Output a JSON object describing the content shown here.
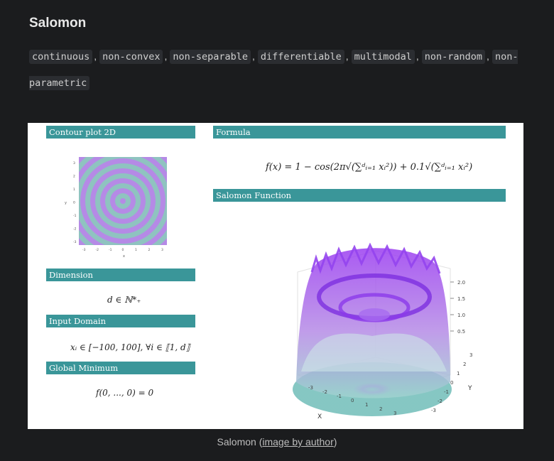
{
  "page": {
    "title": "Salomon",
    "tags": [
      "continuous",
      "non-convex",
      "non-separable",
      "differentiable",
      "multimodal",
      "non-random",
      "non-parametric"
    ],
    "tag_separator": ","
  },
  "figure": {
    "sections": {
      "contour": "Contour plot 2D",
      "formula": "Formula",
      "function": "Salomon Function",
      "dimension": "Dimension",
      "input_domain": "Input Domain",
      "global_minimum": "Global Minimum"
    },
    "formula_text": "f(x) = 1 − cos(2π√(∑ᵈᵢ₌₁ xᵢ²)) + 0.1√(∑ᵈᵢ₌₁ xᵢ²)",
    "dimension_text": "d ∈ ℕ*₊",
    "input_domain_text": "xᵢ ∈ [−100, 100], ∀i ∈ ⟦1, d⟧",
    "global_minimum_text": "f(0, ..., 0) = 0",
    "contour_axis": {
      "ticks": [
        "-3",
        "-2",
        "-1",
        "0",
        "1",
        "2",
        "3"
      ],
      "xlabel": "x",
      "ylabel": "y"
    },
    "surface_axis": {
      "x_ticks": [
        "-3",
        "-2",
        "-1",
        "0",
        "1",
        "2",
        "3"
      ],
      "y_ticks": [
        "-3",
        "-2",
        "-1",
        "0",
        "1",
        "2",
        "3"
      ],
      "z_ticks": [
        "0.5",
        "1.0",
        "1.5",
        "2.0"
      ],
      "xlabel": "X",
      "ylabel": "Y"
    },
    "colors": {
      "header": "#3a9699",
      "purple": "#9b3df0",
      "teal": "#7fc4c0"
    }
  },
  "caption": {
    "prefix": "Salomon (",
    "link": "image by author",
    "suffix": ")"
  }
}
